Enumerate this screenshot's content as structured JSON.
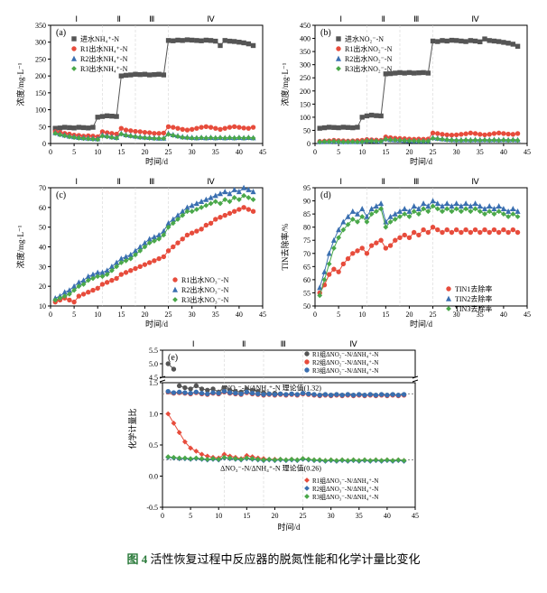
{
  "caption_prefix": "图 4",
  "caption_text": " 活性恢复过程中反应器的脱氮性能和化学计量比变化",
  "x_label": "时间/d",
  "colors": {
    "influent": "#555555",
    "r1": "#e74c3c",
    "r2": "#3a6fb0",
    "r3": "#4aa84a",
    "grid": "#d0d0d0"
  },
  "phases": [
    "Ⅰ",
    "Ⅱ",
    "Ⅲ",
    "Ⅳ"
  ],
  "phase_boundaries": [
    0,
    11,
    18,
    25,
    43
  ],
  "x_ticks": [
    0,
    5,
    10,
    15,
    20,
    25,
    30,
    35,
    40,
    45
  ],
  "charts": {
    "a": {
      "label": "(a)",
      "y_label": "浓度/mg·L⁻¹",
      "y_lim": [
        0,
        350
      ],
      "y_ticks": [
        0,
        50,
        100,
        150,
        200,
        250,
        300,
        350
      ],
      "legend": [
        {
          "name": "进水NH₄⁺-N",
          "color": "#555555",
          "marker": "square"
        },
        {
          "name": "R1出水NH₄⁺-N",
          "color": "#e74c3c",
          "marker": "circle"
        },
        {
          "name": "R2出水NH₄⁺-N",
          "color": "#3a6fb0",
          "marker": "triangle"
        },
        {
          "name": "R3出水NH₄⁺-N",
          "color": "#4aa84a",
          "marker": "diamond"
        }
      ],
      "series": {
        "influent": [
          45,
          46,
          48,
          47,
          46,
          48,
          47,
          46,
          48,
          78,
          80,
          82,
          81,
          80,
          200,
          202,
          203,
          205,
          204,
          205,
          203,
          204,
          205,
          203,
          305,
          304,
          306,
          305,
          307,
          306,
          305,
          304,
          306,
          305,
          303,
          290,
          305,
          303,
          302,
          300,
          298,
          295,
          290
        ],
        "r1": [
          35,
          33,
          30,
          28,
          25,
          24,
          22,
          23,
          22,
          20,
          35,
          32,
          30,
          28,
          45,
          40,
          38,
          36,
          35,
          33,
          32,
          30,
          30,
          31,
          50,
          48,
          45,
          42,
          40,
          42,
          45,
          48,
          50,
          48,
          45,
          42,
          45,
          48,
          50,
          48,
          46,
          45,
          48
        ],
        "r2": [
          32,
          28,
          25,
          22,
          20,
          18,
          17,
          16,
          15,
          14,
          25,
          23,
          20,
          18,
          30,
          26,
          24,
          22,
          20,
          19,
          18,
          17,
          16,
          16,
          30,
          26,
          23,
          20,
          19,
          18,
          17,
          18,
          17,
          18,
          17,
          18,
          17,
          18,
          17,
          18,
          17,
          18,
          17
        ],
        "r3": [
          30,
          26,
          23,
          20,
          18,
          16,
          15,
          14,
          13,
          12,
          22,
          20,
          18,
          16,
          28,
          24,
          22,
          20,
          18,
          17,
          16,
          15,
          15,
          15,
          27,
          24,
          21,
          18,
          17,
          16,
          16,
          17,
          16,
          17,
          16,
          17,
          16,
          17,
          16,
          17,
          16,
          17,
          16
        ]
      }
    },
    "b": {
      "label": "(b)",
      "y_label": "浓度/mg·L⁻¹",
      "y_lim": [
        0,
        450
      ],
      "y_ticks": [
        0,
        50,
        100,
        150,
        200,
        250,
        300,
        350,
        400,
        450
      ],
      "legend": [
        {
          "name": "进水NO₂⁻-N",
          "color": "#555555",
          "marker": "square"
        },
        {
          "name": "R1出水NO₂⁻-N",
          "color": "#e74c3c",
          "marker": "circle"
        },
        {
          "name": "R2出水NO₂⁻-N",
          "color": "#3a6fb0",
          "marker": "triangle"
        },
        {
          "name": "R3出水NO₂⁻-N",
          "color": "#4aa84a",
          "marker": "diamond"
        }
      ],
      "series": {
        "influent": [
          58,
          60,
          62,
          61,
          60,
          62,
          61,
          60,
          62,
          100,
          105,
          108,
          106,
          105,
          265,
          266,
          268,
          270,
          268,
          270,
          268,
          269,
          270,
          268,
          390,
          388,
          392,
          390,
          393,
          392,
          390,
          388,
          392,
          390,
          387,
          398,
          392,
          390,
          388,
          385,
          382,
          378,
          370
        ],
        "r1": [
          8,
          9,
          10,
          12,
          11,
          10,
          9,
          10,
          11,
          12,
          15,
          14,
          13,
          12,
          25,
          22,
          20,
          19,
          18,
          17,
          16,
          17,
          16,
          17,
          40,
          38,
          35,
          33,
          32,
          33,
          35,
          37,
          40,
          38,
          35,
          33,
          35,
          38,
          40,
          38,
          36,
          35,
          38
        ],
        "r2": [
          7,
          8,
          8,
          9,
          8,
          7,
          7,
          8,
          7,
          8,
          12,
          11,
          10,
          9,
          18,
          15,
          14,
          13,
          12,
          11,
          10,
          10,
          10,
          10,
          22,
          20,
          18,
          16,
          15,
          14,
          14,
          15,
          14,
          15,
          14,
          15,
          14,
          15,
          14,
          15,
          14,
          15,
          14
        ],
        "r3": [
          6,
          7,
          7,
          8,
          7,
          6,
          6,
          7,
          6,
          7,
          10,
          9,
          9,
          8,
          16,
          14,
          13,
          12,
          11,
          10,
          10,
          9,
          9,
          9,
          20,
          18,
          16,
          14,
          13,
          12,
          12,
          13,
          12,
          13,
          12,
          13,
          12,
          13,
          12,
          13,
          12,
          13,
          12
        ]
      }
    },
    "c": {
      "label": "(c)",
      "y_label": "浓度/mg·L⁻¹",
      "y_lim": [
        10,
        70
      ],
      "y_ticks": [
        10,
        20,
        30,
        40,
        50,
        60,
        70
      ],
      "legend": [
        {
          "name": "R1出水NO₃⁻-N",
          "color": "#e74c3c",
          "marker": "circle"
        },
        {
          "name": "R2出水NO₃⁻-N",
          "color": "#3a6fb0",
          "marker": "triangle"
        },
        {
          "name": "R3出水NO₃⁻-N",
          "color": "#4aa84a",
          "marker": "diamond"
        }
      ],
      "series": {
        "r1": [
          12,
          13,
          14,
          13,
          12,
          15,
          16,
          17,
          18,
          19,
          21,
          22,
          23,
          24,
          26,
          27,
          28,
          29,
          30,
          31,
          32,
          33,
          34,
          35,
          38,
          40,
          42,
          44,
          46,
          47,
          48,
          49,
          51,
          52,
          54,
          55,
          56,
          57,
          58,
          59,
          60,
          59,
          58
        ],
        "r2": [
          14,
          15,
          17,
          18,
          20,
          22,
          23,
          25,
          26,
          27,
          27,
          28,
          30,
          32,
          34,
          35,
          36,
          38,
          40,
          42,
          44,
          45,
          46,
          48,
          52,
          54,
          56,
          58,
          60,
          61,
          62,
          63,
          64,
          65,
          66,
          67,
          68,
          67,
          69,
          68,
          70,
          69,
          68
        ],
        "r3": [
          13,
          14,
          15,
          16,
          18,
          20,
          21,
          23,
          24,
          25,
          25,
          26,
          28,
          30,
          32,
          33,
          34,
          36,
          38,
          40,
          42,
          43,
          44,
          46,
          50,
          52,
          54,
          56,
          58,
          58,
          59,
          60,
          61,
          62,
          63,
          62,
          64,
          63,
          65,
          64,
          66,
          65,
          64
        ]
      }
    },
    "d": {
      "label": "(d)",
      "y_label": "TIN去除率/%",
      "y_lim": [
        50,
        95
      ],
      "y_ticks": [
        50,
        55,
        60,
        65,
        70,
        75,
        80,
        85,
        90,
        95
      ],
      "legend": [
        {
          "name": "TIN1去除率",
          "color": "#e74c3c",
          "marker": "circle"
        },
        {
          "name": "TIN2去除率",
          "color": "#3a6fb0",
          "marker": "triangle"
        },
        {
          "name": "TIN3去除率",
          "color": "#4aa84a",
          "marker": "diamond"
        }
      ],
      "series": {
        "r1": [
          55,
          58,
          62,
          64,
          63,
          66,
          68,
          70,
          71,
          72,
          70,
          73,
          74,
          75,
          72,
          73,
          75,
          76,
          77,
          76,
          78,
          77,
          79,
          78,
          80,
          79,
          78,
          79,
          78,
          79,
          78,
          79,
          78,
          79,
          78,
          79,
          78,
          79,
          78,
          79,
          78,
          79,
          78
        ],
        "r2": [
          57,
          63,
          70,
          75,
          79,
          82,
          84,
          86,
          85,
          87,
          84,
          87,
          88,
          89,
          82,
          84,
          85,
          86,
          87,
          86,
          88,
          87,
          89,
          88,
          90,
          89,
          88,
          89,
          88,
          89,
          88,
          89,
          88,
          89,
          88,
          87,
          88,
          87,
          88,
          87,
          86,
          87,
          86
        ],
        "r3": [
          54,
          60,
          66,
          72,
          76,
          79,
          81,
          83,
          82,
          84,
          82,
          85,
          86,
          87,
          80,
          82,
          83,
          84,
          85,
          84,
          86,
          85,
          87,
          86,
          88,
          87,
          86,
          87,
          86,
          87,
          86,
          87,
          86,
          87,
          86,
          85,
          86,
          85,
          86,
          85,
          84,
          85,
          84
        ]
      }
    },
    "e": {
      "label": "(e)",
      "y_label": "化学计量比",
      "x_label": "时间/d",
      "y_lim": [
        -0.5,
        5.5
      ],
      "y_break": 1.5,
      "y_top_start": 4.5,
      "y_ticks_bottom": [
        -0.5,
        0,
        0.5,
        1.0,
        1.5
      ],
      "y_ticks_top": [
        4.5,
        5.0,
        5.5
      ],
      "ref_lines": [
        {
          "value": 1.32,
          "label": "ΔNO₂⁻-N/ΔNH₄⁺-N 理论值(1.32)"
        },
        {
          "value": 0.26,
          "label": "ΔNO₃⁻-N/ΔNH₄⁺-N 理论值(0.26)"
        }
      ],
      "legend_top": [
        {
          "name": "R1组ΔNO₂⁻-N/ΔNH₄⁺-N",
          "color": "#555555",
          "marker": "circle"
        },
        {
          "name": "R2组ΔNO₂⁻-N/ΔNH₄⁺-N",
          "color": "#e74c3c",
          "marker": "circle"
        },
        {
          "name": "R3组ΔNO₂⁻-N/ΔNH₄⁺-N",
          "color": "#3a6fb0",
          "marker": "circle"
        }
      ],
      "legend_bottom": [
        {
          "name": "R1组ΔNO₃⁻-N/ΔNH₄⁺-N",
          "color": "#e74c3c",
          "marker": "diamond"
        },
        {
          "name": "R2组ΔNO₃⁻-N/ΔNH₄⁺-N",
          "color": "#3a6fb0",
          "marker": "diamond"
        },
        {
          "name": "R3组ΔNO₃⁻-N/ΔNH₄⁺-N",
          "color": "#4aa84a",
          "marker": "diamond"
        }
      ],
      "series_top": {
        "s1": [
          5.0,
          4.8,
          null,
          null,
          null,
          null,
          null,
          null,
          null,
          null,
          null,
          null,
          null,
          null,
          null,
          null,
          null,
          null,
          null,
          null,
          null,
          null,
          null,
          null,
          null,
          null,
          null,
          null,
          null,
          null,
          null,
          null,
          null,
          null,
          null,
          null,
          null,
          null,
          null,
          null,
          null,
          null,
          null
        ],
        "s1b": [
          null,
          null,
          1.45,
          1.42,
          1.4,
          1.45,
          1.4,
          1.38,
          1.4,
          1.35,
          1.42,
          1.38,
          1.36,
          1.35,
          1.4,
          1.38,
          1.36,
          1.34,
          1.32,
          1.33,
          1.32,
          1.31,
          1.32,
          1.31,
          1.33,
          1.32,
          1.31,
          1.3,
          1.31,
          1.3,
          1.31,
          1.3,
          1.31,
          1.3,
          1.31,
          1.3,
          1.31,
          1.3,
          1.31,
          1.3,
          1.31,
          1.3,
          1.31
        ],
        "s2": [
          1.35,
          1.33,
          1.34,
          1.33,
          1.32,
          1.34,
          1.32,
          1.31,
          1.33,
          1.32,
          1.35,
          1.33,
          1.32,
          1.31,
          1.34,
          1.32,
          1.31,
          1.3,
          1.31,
          1.3,
          1.31,
          1.3,
          1.31,
          1.3,
          1.32,
          1.31,
          1.3,
          1.29,
          1.3,
          1.29,
          1.3,
          1.29,
          1.3,
          1.29,
          1.3,
          1.29,
          1.3,
          1.29,
          1.3,
          1.29,
          1.3,
          1.29,
          1.3
        ],
        "s3": [
          1.36,
          1.34,
          1.35,
          1.34,
          1.33,
          1.35,
          1.33,
          1.32,
          1.34,
          1.33,
          1.36,
          1.34,
          1.33,
          1.32,
          1.35,
          1.33,
          1.32,
          1.31,
          1.32,
          1.31,
          1.32,
          1.31,
          1.32,
          1.31,
          1.33,
          1.32,
          1.31,
          1.3,
          1.31,
          1.3,
          1.31,
          1.3,
          1.31,
          1.3,
          1.31,
          1.3,
          1.31,
          1.3,
          1.31,
          1.3,
          1.31,
          1.3,
          1.31
        ]
      },
      "series_bottom": {
        "b1": [
          1.0,
          0.85,
          0.7,
          0.55,
          0.45,
          0.4,
          0.35,
          0.32,
          0.3,
          0.29,
          0.35,
          0.32,
          0.3,
          0.28,
          0.33,
          0.31,
          0.29,
          0.28,
          0.27,
          0.27,
          0.27,
          0.26,
          0.27,
          0.26,
          0.28,
          0.27,
          0.26,
          0.26,
          0.25,
          0.26,
          0.25,
          0.26,
          0.25,
          0.26,
          0.25,
          0.26,
          0.25,
          0.26,
          0.25,
          0.26,
          0.25,
          0.26,
          0.25
        ],
        "b2": [
          0.3,
          0.29,
          0.28,
          0.28,
          0.27,
          0.28,
          0.27,
          0.26,
          0.27,
          0.26,
          0.29,
          0.28,
          0.27,
          0.26,
          0.28,
          0.27,
          0.26,
          0.25,
          0.26,
          0.25,
          0.26,
          0.25,
          0.26,
          0.25,
          0.27,
          0.26,
          0.25,
          0.25,
          0.24,
          0.25,
          0.24,
          0.25,
          0.24,
          0.25,
          0.24,
          0.25,
          0.24,
          0.25,
          0.24,
          0.25,
          0.24,
          0.25,
          0.24
        ],
        "b3": [
          0.31,
          0.3,
          0.29,
          0.29,
          0.28,
          0.29,
          0.28,
          0.27,
          0.28,
          0.27,
          0.3,
          0.29,
          0.28,
          0.27,
          0.29,
          0.28,
          0.27,
          0.26,
          0.27,
          0.26,
          0.27,
          0.26,
          0.27,
          0.26,
          0.28,
          0.27,
          0.26,
          0.26,
          0.25,
          0.26,
          0.25,
          0.26,
          0.25,
          0.26,
          0.25,
          0.26,
          0.25,
          0.26,
          0.25,
          0.26,
          0.25,
          0.26,
          0.25
        ]
      }
    }
  }
}
